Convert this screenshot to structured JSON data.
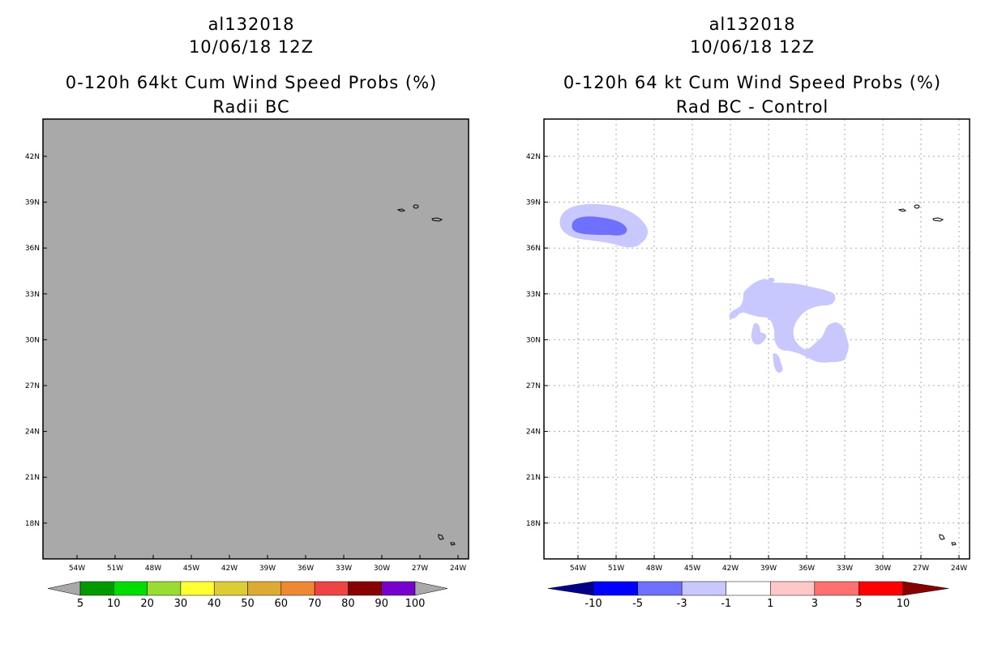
{
  "left": {
    "storm_id": "al132018",
    "datetime": "10/06/18 12Z",
    "product": "0-120h 64kt Cum Wind Speed Probs (%)",
    "subtitle": "Radii BC",
    "fill_color": "#a9a9a9",
    "colorbar": {
      "labels": [
        "5",
        "10",
        "20",
        "30",
        "40",
        "50",
        "60",
        "70",
        "80",
        "90",
        "100"
      ],
      "colors": [
        "#a9a9a9",
        "#009900",
        "#00dd00",
        "#99dd33",
        "#ffff33",
        "#ddcc33",
        "#ddaa33",
        "#ee8833",
        "#ee4444",
        "#880000",
        "#7700cc",
        "#a9a9a9"
      ]
    }
  },
  "right": {
    "storm_id": "al132018",
    "datetime": "10/06/18 12Z",
    "product": "0-120h 64 kt Cum Wind Speed Probs (%)",
    "subtitle": "Rad BC - Control",
    "colorbar": {
      "labels": [
        "-10",
        "-5",
        "-3",
        "-1",
        "1",
        "3",
        "5",
        "10"
      ],
      "colors": [
        "#000088",
        "#0000ff",
        "#7070ff",
        "#c8c8ff",
        "#ffffff",
        "#ffc8c8",
        "#ff7070",
        "#ff0000",
        "#880000"
      ]
    }
  },
  "axes": {
    "lat_labels": [
      "42N",
      "39N",
      "36N",
      "33N",
      "30N",
      "27N",
      "24N",
      "21N",
      "18N"
    ],
    "lon_labels": [
      "54W",
      "51W",
      "48W",
      "45W",
      "42W",
      "39W",
      "36W",
      "33W",
      "30W",
      "27W",
      "24W"
    ]
  }
}
